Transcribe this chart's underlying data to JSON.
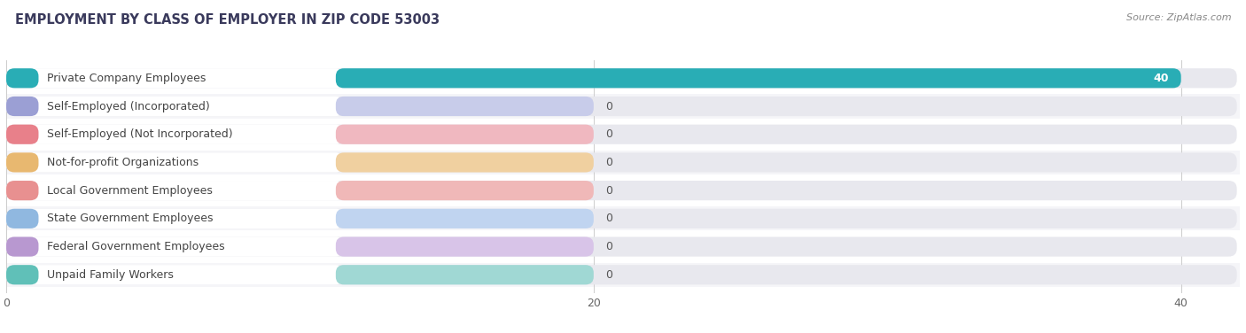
{
  "title": "EMPLOYMENT BY CLASS OF EMPLOYER IN ZIP CODE 53003",
  "source": "Source: ZipAtlas.com",
  "categories": [
    "Private Company Employees",
    "Self-Employed (Incorporated)",
    "Self-Employed (Not Incorporated)",
    "Not-for-profit Organizations",
    "Local Government Employees",
    "State Government Employees",
    "Federal Government Employees",
    "Unpaid Family Workers"
  ],
  "values": [
    40,
    0,
    0,
    0,
    0,
    0,
    0,
    0
  ],
  "bar_colors": [
    "#29adb5",
    "#9b9fd4",
    "#e8808a",
    "#e8b870",
    "#e89090",
    "#90b8e0",
    "#b898d0",
    "#60c0b8"
  ],
  "bar_light_colors": [
    "#29adb5",
    "#c8ccea",
    "#f0b8c0",
    "#f0d0a0",
    "#f0b8b8",
    "#c0d4f0",
    "#d8c4e8",
    "#a0d8d4"
  ],
  "background_color": "#ffffff",
  "row_bg_odd": "#f5f5f8",
  "row_bg_even": "#ffffff",
  "label_bg_color": "#f0f0f5",
  "xlim": [
    0,
    42
  ],
  "xticks": [
    0,
    20,
    40
  ],
  "title_fontsize": 10.5,
  "label_fontsize": 9,
  "value_fontsize": 9,
  "source_fontsize": 8
}
